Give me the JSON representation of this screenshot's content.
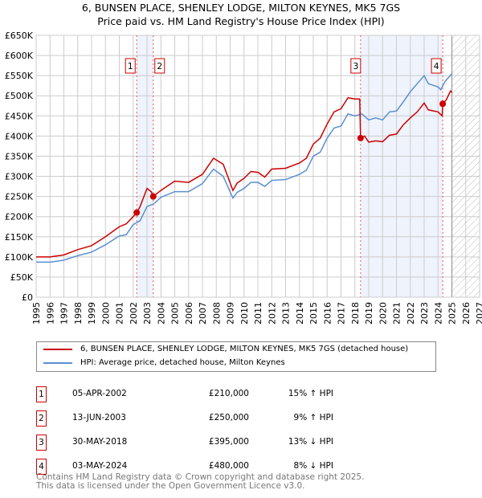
{
  "chart_data": {
    "type": "line",
    "title": "6, BUNSEN PLACE, SHENLEY LODGE, MILTON KEYNES, MK5 7GS",
    "subtitle": "Price paid vs. HM Land Registry's House Price Index (HPI)",
    "xlim": [
      1995,
      2027
    ],
    "ylim": [
      0,
      650000
    ],
    "x_ticks": [
      "1995",
      "1996",
      "1997",
      "1998",
      "1999",
      "2000",
      "2001",
      "2002",
      "2003",
      "2004",
      "2005",
      "2006",
      "2007",
      "2008",
      "2009",
      "2010",
      "2011",
      "2012",
      "2013",
      "2014",
      "2015",
      "2016",
      "2017",
      "2018",
      "2019",
      "2020",
      "2021",
      "2022",
      "2023",
      "2024",
      "2025",
      "2026",
      "2027"
    ],
    "y_ticks": [
      "£0",
      "£50K",
      "£100K",
      "£150K",
      "£200K",
      "£250K",
      "£300K",
      "£350K",
      "£400K",
      "£450K",
      "£500K",
      "£550K",
      "£600K",
      "£650K"
    ],
    "grid": true,
    "colors": {
      "property": "#cc0000",
      "hpi": "#5b8fd0",
      "shade": "#eef3fc"
    },
    "forecast_from": 2025,
    "shaded_periods": [
      [
        2002.26,
        2003.45
      ],
      [
        2018.41,
        2024.34
      ]
    ],
    "series": [
      {
        "name": "6, BUNSEN PLACE, SHENLEY LODGE, MILTON KEYNES, MK5 7GS (detached house)",
        "key": "property",
        "points": [
          [
            1995,
            100
          ],
          [
            1996,
            100
          ],
          [
            1997,
            105
          ],
          [
            1998,
            118
          ],
          [
            1999,
            128
          ],
          [
            2000,
            150
          ],
          [
            2001,
            175
          ],
          [
            2001.5,
            182
          ],
          [
            2002,
            200
          ],
          [
            2002.26,
            210
          ],
          [
            2002.5,
            225
          ],
          [
            2003,
            270
          ],
          [
            2003.3,
            262
          ],
          [
            2003.45,
            250
          ],
          [
            2004,
            265
          ],
          [
            2005,
            288
          ],
          [
            2006,
            285
          ],
          [
            2007,
            305
          ],
          [
            2007.8,
            345
          ],
          [
            2008.5,
            330
          ],
          [
            2009.2,
            265
          ],
          [
            2009.5,
            283
          ],
          [
            2010,
            295
          ],
          [
            2010.5,
            312
          ],
          [
            2011,
            310
          ],
          [
            2011.5,
            298
          ],
          [
            2012,
            318
          ],
          [
            2013,
            320
          ],
          [
            2014,
            333
          ],
          [
            2014.5,
            345
          ],
          [
            2015,
            380
          ],
          [
            2015.5,
            395
          ],
          [
            2016,
            430
          ],
          [
            2016.5,
            460
          ],
          [
            2017,
            468
          ],
          [
            2017.5,
            495
          ],
          [
            2018,
            492
          ],
          [
            2018.35,
            492
          ],
          [
            2018.41,
            395
          ],
          [
            2018.7,
            400
          ],
          [
            2019,
            385
          ],
          [
            2019.5,
            388
          ],
          [
            2020,
            386
          ],
          [
            2020.5,
            402
          ],
          [
            2021,
            405
          ],
          [
            2021.5,
            428
          ],
          [
            2022,
            445
          ],
          [
            2022.5,
            460
          ],
          [
            2023,
            482
          ],
          [
            2023.3,
            465
          ],
          [
            2024,
            460
          ],
          [
            2024.3,
            450
          ],
          [
            2024.34,
            480
          ],
          [
            2024.6,
            490
          ],
          [
            2024.9,
            512
          ],
          [
            2025,
            508
          ]
        ]
      },
      {
        "name": "HPI: Average price, detached house, Milton Keynes",
        "key": "hpi",
        "points": [
          [
            1995,
            87
          ],
          [
            1996,
            87
          ],
          [
            1997,
            92
          ],
          [
            1998,
            103
          ],
          [
            1999,
            112
          ],
          [
            2000,
            130
          ],
          [
            2001,
            152
          ],
          [
            2001.5,
            155
          ],
          [
            2002,
            180
          ],
          [
            2002.5,
            190
          ],
          [
            2003,
            225
          ],
          [
            2003.5,
            232
          ],
          [
            2004,
            248
          ],
          [
            2005,
            262
          ],
          [
            2006,
            262
          ],
          [
            2007,
            282
          ],
          [
            2007.8,
            318
          ],
          [
            2008.5,
            300
          ],
          [
            2009.2,
            246
          ],
          [
            2009.5,
            260
          ],
          [
            2010,
            270
          ],
          [
            2010.5,
            285
          ],
          [
            2011,
            285
          ],
          [
            2011.5,
            275
          ],
          [
            2012,
            290
          ],
          [
            2013,
            292
          ],
          [
            2014,
            305
          ],
          [
            2014.5,
            315
          ],
          [
            2015,
            350
          ],
          [
            2015.5,
            360
          ],
          [
            2016,
            395
          ],
          [
            2016.5,
            420
          ],
          [
            2017,
            425
          ],
          [
            2017.5,
            455
          ],
          [
            2018,
            450
          ],
          [
            2018.5,
            455
          ],
          [
            2019,
            440
          ],
          [
            2019.5,
            445
          ],
          [
            2020,
            440
          ],
          [
            2020.5,
            460
          ],
          [
            2021,
            462
          ],
          [
            2021.5,
            485
          ],
          [
            2022,
            510
          ],
          [
            2022.5,
            530
          ],
          [
            2023,
            550
          ],
          [
            2023.3,
            530
          ],
          [
            2024,
            522
          ],
          [
            2024.2,
            515
          ],
          [
            2024.5,
            535
          ],
          [
            2025,
            555
          ]
        ]
      }
    ],
    "transactions": [
      {
        "n": "1",
        "x": 2002.26,
        "y": 210,
        "date": "05-APR-2002",
        "price": "£210,000",
        "hpi": "15% ↑ HPI"
      },
      {
        "n": "2",
        "x": 2003.45,
        "y": 250,
        "date": "13-JUN-2003",
        "price": "£250,000",
        "hpi": "9% ↑ HPI"
      },
      {
        "n": "3",
        "x": 2018.41,
        "y": 395,
        "date": "30-MAY-2018",
        "price": "£395,000",
        "hpi": "13% ↓ HPI"
      },
      {
        "n": "4",
        "x": 2024.34,
        "y": 480,
        "date": "03-MAY-2024",
        "price": "£480,000",
        "hpi": "8% ↓ HPI"
      }
    ]
  },
  "legend": {
    "property": "6, BUNSEN PLACE, SHENLEY LODGE, MILTON KEYNES, MK5 7GS (detached house)",
    "hpi": "HPI: Average price, detached house, Milton Keynes"
  },
  "footer": {
    "line1": "Contains HM Land Registry data © Crown copyright and database right 2025.",
    "line2": "This data is licensed under the Open Government Licence v3.0."
  }
}
